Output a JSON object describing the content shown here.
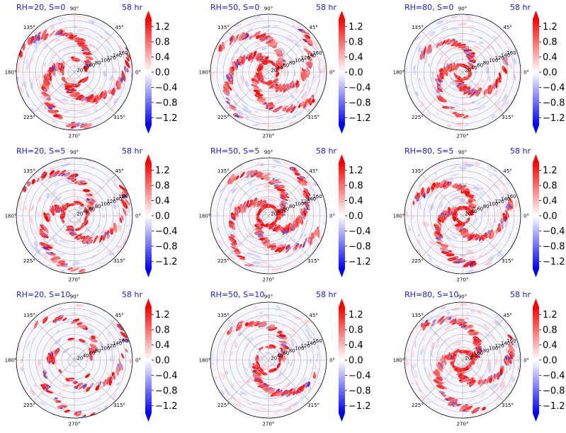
{
  "colors": {
    "positive": "#ff0000",
    "negative": "#0000ff",
    "zero": "#ffffff",
    "title": "#1a1acc"
  },
  "chart_data": {
    "type": "heatmap",
    "layout": "3x3 grid of polar contour maps",
    "projection": "polar",
    "colormap": "bwr",
    "colorbar": {
      "ticks": [
        "1.2",
        "0.8",
        "0.4",
        "0.0",
        "−0.4",
        "−0.8",
        "−1.2"
      ],
      "tick_values": [
        1.2,
        0.8,
        0.4,
        0.0,
        -0.4,
        -0.8,
        -1.2
      ],
      "range": [
        -1.4,
        1.4
      ],
      "extend": "both"
    },
    "angular_ticks": [
      "90°",
      "45°",
      "0°",
      "315°",
      "270°",
      "225°",
      "180°",
      "135°"
    ],
    "angular_tick_values": [
      90,
      45,
      0,
      315,
      270,
      225,
      180,
      135
    ],
    "radial_ticks": [
      "20",
      "40",
      "60",
      "80",
      "100",
      "120",
      "140",
      "160"
    ],
    "radial_tick_values": [
      20,
      40,
      60,
      80,
      100,
      120,
      140,
      160
    ],
    "radial_max": 180,
    "radial_label_angle_deg": 22.5,
    "panels": [
      {
        "title": "RH=20, S=0",
        "time": "58 hr",
        "RH": 20,
        "S": 0,
        "pattern": "broad spiral bands, scattered",
        "seed": 11,
        "coreR": 40,
        "spread": 1.0,
        "arms": 3,
        "density": 1.0
      },
      {
        "title": "RH=50, S=0",
        "time": "58 hr",
        "RH": 50,
        "S": 0,
        "pattern": "spiral bands with strong core",
        "seed": 23,
        "coreR": 30,
        "spread": 0.85,
        "arms": 4,
        "density": 1.0
      },
      {
        "title": "RH=80, S=0",
        "time": "58 hr",
        "RH": 80,
        "S": 0,
        "pattern": "compact intense eyewall",
        "seed": 37,
        "coreR": 22,
        "spread": 0.45,
        "arms": 3,
        "density": 0.8
      },
      {
        "title": "RH=20, S=5",
        "time": "58 hr",
        "RH": 20,
        "S": 5,
        "pattern": "spiral bands, scattered outer cells",
        "seed": 41,
        "coreR": 38,
        "spread": 0.95,
        "arms": 3,
        "density": 0.9
      },
      {
        "title": "RH=50, S=5",
        "time": "58 hr",
        "RH": 50,
        "S": 5,
        "pattern": "strong spiral bands",
        "seed": 53,
        "coreR": 30,
        "spread": 0.8,
        "arms": 4,
        "density": 1.1
      },
      {
        "title": "RH=80, S=5",
        "time": "58 hr",
        "RH": 80,
        "S": 5,
        "pattern": "intense core with spiral bands",
        "seed": 67,
        "coreR": 24,
        "spread": 0.7,
        "arms": 3,
        "density": 1.0
      },
      {
        "title": "RH=20, S=10",
        "time": "58 hr",
        "RH": 20,
        "S": 10,
        "pattern": "weak scattered cells",
        "seed": 71,
        "coreR": 60,
        "spread": 1.0,
        "arms": 3,
        "density": 0.5
      },
      {
        "title": "RH=50, S=10",
        "time": "58 hr",
        "RH": 50,
        "S": 10,
        "pattern": "asymmetric convection to upper right",
        "seed": 83,
        "coreR": 40,
        "spread": 0.6,
        "arms": 2,
        "density": 0.9
      },
      {
        "title": "RH=80, S=10",
        "time": "58 hr",
        "RH": 80,
        "S": 10,
        "pattern": "asymmetric, shifted to north",
        "seed": 97,
        "coreR": 30,
        "spread": 0.8,
        "arms": 3,
        "density": 1.0
      }
    ]
  }
}
